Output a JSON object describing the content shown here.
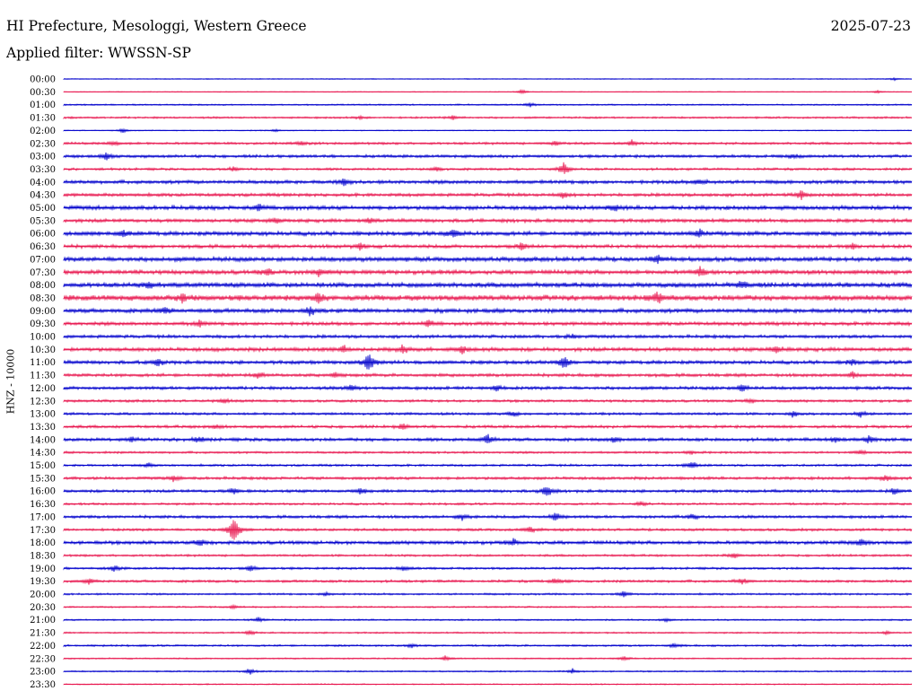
{
  "header": {
    "station": "HI Prefecture, Mesologgi, Western Greece",
    "date": "2025-07-23",
    "filter_label": "Applied filter: WWSSN-SP"
  },
  "channel_label": "HNZ - 10000",
  "colors": {
    "even_row": "#0000cc",
    "odd_row": "#e8174f",
    "background": "#ffffff"
  },
  "chart_data": {
    "type": "line",
    "title": "HI Prefecture, Mesologgi, Western Greece",
    "subtitle": "Applied filter: WWSSN-SP",
    "ylabel": "HNZ - 10000",
    "xlabel": "",
    "grid": false,
    "legend": "none",
    "rows": [
      {
        "time": "00:00",
        "noise": 0.6,
        "events": [
          {
            "t": 0.98,
            "a": 1.5
          }
        ]
      },
      {
        "time": "00:30",
        "noise": 0.5,
        "events": [
          {
            "t": 0.54,
            "a": 3
          },
          {
            "t": 0.96,
            "a": 2
          }
        ]
      },
      {
        "time": "01:00",
        "noise": 0.9,
        "events": [
          {
            "t": 0.55,
            "a": 3
          }
        ]
      },
      {
        "time": "01:30",
        "noise": 1.2,
        "events": [
          {
            "t": 0.35,
            "a": 2
          },
          {
            "t": 0.46,
            "a": 3
          }
        ]
      },
      {
        "time": "02:00",
        "noise": 0.6,
        "events": [
          {
            "t": 0.07,
            "a": 3
          },
          {
            "t": 0.25,
            "a": 2
          }
        ]
      },
      {
        "time": "02:30",
        "noise": 1.5,
        "events": [
          {
            "t": 0.06,
            "a": 3
          },
          {
            "t": 0.28,
            "a": 3
          },
          {
            "t": 0.58,
            "a": 3
          },
          {
            "t": 0.67,
            "a": 4
          }
        ]
      },
      {
        "time": "03:00",
        "noise": 1.8,
        "events": [
          {
            "t": 0.05,
            "a": 6
          },
          {
            "t": 0.86,
            "a": 3
          }
        ]
      },
      {
        "time": "03:30",
        "noise": 1.5,
        "events": [
          {
            "t": 0.2,
            "a": 3
          },
          {
            "t": 0.44,
            "a": 3
          },
          {
            "t": 0.59,
            "a": 9
          }
        ]
      },
      {
        "time": "04:00",
        "noise": 2.2,
        "events": [
          {
            "t": 0.33,
            "a": 5
          },
          {
            "t": 0.75,
            "a": 4
          }
        ]
      },
      {
        "time": "04:30",
        "noise": 2.0,
        "events": [
          {
            "t": 0.59,
            "a": 4
          },
          {
            "t": 0.87,
            "a": 6
          }
        ]
      },
      {
        "time": "05:00",
        "noise": 2.6,
        "events": [
          {
            "t": 0.23,
            "a": 4
          },
          {
            "t": 0.65,
            "a": 4
          }
        ]
      },
      {
        "time": "05:30",
        "noise": 2.2,
        "events": [
          {
            "t": 0.25,
            "a": 4
          },
          {
            "t": 0.36,
            "a": 4
          }
        ]
      },
      {
        "time": "06:00",
        "noise": 2.6,
        "events": [
          {
            "t": 0.07,
            "a": 4
          },
          {
            "t": 0.46,
            "a": 6
          },
          {
            "t": 0.75,
            "a": 6
          }
        ]
      },
      {
        "time": "06:30",
        "noise": 2.2,
        "events": [
          {
            "t": 0.35,
            "a": 5
          },
          {
            "t": 0.54,
            "a": 5
          },
          {
            "t": 0.93,
            "a": 4
          }
        ]
      },
      {
        "time": "07:00",
        "noise": 2.8,
        "events": [
          {
            "t": 0.7,
            "a": 5
          }
        ]
      },
      {
        "time": "07:30",
        "noise": 2.6,
        "events": [
          {
            "t": 0.24,
            "a": 5
          },
          {
            "t": 0.3,
            "a": 5
          },
          {
            "t": 0.75,
            "a": 7
          }
        ]
      },
      {
        "time": "08:00",
        "noise": 3.0,
        "events": [
          {
            "t": 0.1,
            "a": 4
          },
          {
            "t": 0.8,
            "a": 5
          }
        ]
      },
      {
        "time": "08:30",
        "noise": 3.4,
        "events": [
          {
            "t": 0.14,
            "a": 6
          },
          {
            "t": 0.3,
            "a": 7
          },
          {
            "t": 0.7,
            "a": 7
          }
        ]
      },
      {
        "time": "09:00",
        "noise": 2.6,
        "events": [
          {
            "t": 0.12,
            "a": 4
          },
          {
            "t": 0.29,
            "a": 6
          }
        ]
      },
      {
        "time": "09:30",
        "noise": 2.2,
        "events": [
          {
            "t": 0.16,
            "a": 4
          },
          {
            "t": 0.43,
            "a": 4
          }
        ]
      },
      {
        "time": "10:00",
        "noise": 2.0,
        "events": [
          {
            "t": 0.6,
            "a": 3
          }
        ]
      },
      {
        "time": "10:30",
        "noise": 2.4,
        "events": [
          {
            "t": 0.33,
            "a": 5
          },
          {
            "t": 0.4,
            "a": 5
          },
          {
            "t": 0.47,
            "a": 5
          },
          {
            "t": 0.84,
            "a": 5
          }
        ]
      },
      {
        "time": "11:00",
        "noise": 2.2,
        "events": [
          {
            "t": 0.11,
            "a": 5
          },
          {
            "t": 0.36,
            "a": 14
          },
          {
            "t": 0.59,
            "a": 9
          },
          {
            "t": 0.93,
            "a": 4
          }
        ]
      },
      {
        "time": "11:30",
        "noise": 2.0,
        "events": [
          {
            "t": 0.23,
            "a": 4
          },
          {
            "t": 0.32,
            "a": 4
          },
          {
            "t": 0.93,
            "a": 4
          }
        ]
      },
      {
        "time": "12:00",
        "noise": 2.0,
        "events": [
          {
            "t": 0.34,
            "a": 4
          },
          {
            "t": 0.51,
            "a": 5
          },
          {
            "t": 0.8,
            "a": 6
          }
        ]
      },
      {
        "time": "12:30",
        "noise": 1.6,
        "events": [
          {
            "t": 0.19,
            "a": 3
          },
          {
            "t": 0.81,
            "a": 3
          }
        ]
      },
      {
        "time": "13:00",
        "noise": 1.6,
        "events": [
          {
            "t": 0.53,
            "a": 3
          },
          {
            "t": 0.86,
            "a": 4
          },
          {
            "t": 0.94,
            "a": 4
          }
        ]
      },
      {
        "time": "13:30",
        "noise": 1.8,
        "events": [
          {
            "t": 0.18,
            "a": 3
          },
          {
            "t": 0.4,
            "a": 4
          }
        ]
      },
      {
        "time": "14:00",
        "noise": 2.0,
        "events": [
          {
            "t": 0.08,
            "a": 4
          },
          {
            "t": 0.16,
            "a": 4
          },
          {
            "t": 0.5,
            "a": 8
          },
          {
            "t": 0.65,
            "a": 4
          },
          {
            "t": 0.91,
            "a": 4
          },
          {
            "t": 0.95,
            "a": 5
          }
        ]
      },
      {
        "time": "14:30",
        "noise": 1.4,
        "events": [
          {
            "t": 0.74,
            "a": 3
          },
          {
            "t": 0.94,
            "a": 3
          }
        ]
      },
      {
        "time": "15:00",
        "noise": 1.4,
        "events": [
          {
            "t": 0.1,
            "a": 3
          },
          {
            "t": 0.74,
            "a": 6
          }
        ]
      },
      {
        "time": "15:30",
        "noise": 1.8,
        "events": [
          {
            "t": 0.13,
            "a": 4
          },
          {
            "t": 0.97,
            "a": 4
          }
        ]
      },
      {
        "time": "16:00",
        "noise": 1.8,
        "events": [
          {
            "t": 0.2,
            "a": 4
          },
          {
            "t": 0.35,
            "a": 4
          },
          {
            "t": 0.57,
            "a": 9
          },
          {
            "t": 0.98,
            "a": 4
          }
        ]
      },
      {
        "time": "16:30",
        "noise": 1.4,
        "events": [
          {
            "t": 0.68,
            "a": 3
          }
        ]
      },
      {
        "time": "17:00",
        "noise": 1.8,
        "events": [
          {
            "t": 0.47,
            "a": 4
          },
          {
            "t": 0.58,
            "a": 6
          },
          {
            "t": 0.74,
            "a": 4
          }
        ]
      },
      {
        "time": "17:30",
        "noise": 1.6,
        "events": [
          {
            "t": 0.2,
            "a": 22
          },
          {
            "t": 0.55,
            "a": 4
          }
        ]
      },
      {
        "time": "18:00",
        "noise": 2.2,
        "events": [
          {
            "t": 0.16,
            "a": 5
          },
          {
            "t": 0.53,
            "a": 4
          },
          {
            "t": 0.94,
            "a": 5
          }
        ]
      },
      {
        "time": "18:30",
        "noise": 1.4,
        "events": [
          {
            "t": 0.79,
            "a": 3
          }
        ]
      },
      {
        "time": "19:00",
        "noise": 1.4,
        "events": [
          {
            "t": 0.06,
            "a": 4
          },
          {
            "t": 0.22,
            "a": 4
          },
          {
            "t": 0.4,
            "a": 4
          }
        ]
      },
      {
        "time": "19:30",
        "noise": 1.6,
        "events": [
          {
            "t": 0.03,
            "a": 4
          },
          {
            "t": 0.58,
            "a": 4
          },
          {
            "t": 0.8,
            "a": 4
          }
        ]
      },
      {
        "time": "20:00",
        "noise": 1.2,
        "events": [
          {
            "t": 0.31,
            "a": 3
          },
          {
            "t": 0.66,
            "a": 4
          }
        ]
      },
      {
        "time": "20:30",
        "noise": 1.0,
        "events": [
          {
            "t": 0.2,
            "a": 3
          }
        ]
      },
      {
        "time": "21:00",
        "noise": 1.0,
        "events": [
          {
            "t": 0.23,
            "a": 3
          },
          {
            "t": 0.71,
            "a": 2
          }
        ]
      },
      {
        "time": "21:30",
        "noise": 1.0,
        "events": [
          {
            "t": 0.22,
            "a": 3
          },
          {
            "t": 0.97,
            "a": 2
          }
        ]
      },
      {
        "time": "22:00",
        "noise": 1.2,
        "events": [
          {
            "t": 0.41,
            "a": 3
          },
          {
            "t": 0.72,
            "a": 3
          }
        ]
      },
      {
        "time": "22:30",
        "noise": 0.9,
        "events": [
          {
            "t": 0.45,
            "a": 3
          },
          {
            "t": 0.66,
            "a": 4
          }
        ]
      },
      {
        "time": "23:00",
        "noise": 0.9,
        "events": [
          {
            "t": 0.22,
            "a": 4
          },
          {
            "t": 0.6,
            "a": 3
          }
        ]
      },
      {
        "time": "23:30",
        "noise": 0.8,
        "events": []
      }
    ]
  }
}
